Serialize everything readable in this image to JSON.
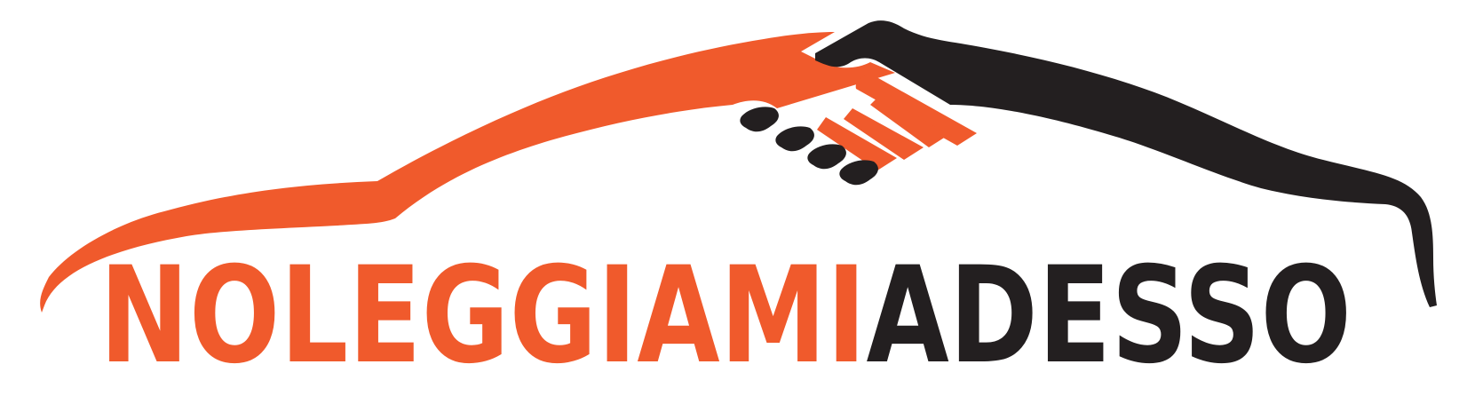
{
  "brand": {
    "name_part_1": "NOLEGGIAMI",
    "name_part_2": "ADESSO"
  },
  "colors": {
    "accent": "#f05a2c",
    "dark": "#231f20",
    "background": "#ffffff"
  },
  "icons": {
    "emblem": "car-silhouette-handshake-icon"
  }
}
